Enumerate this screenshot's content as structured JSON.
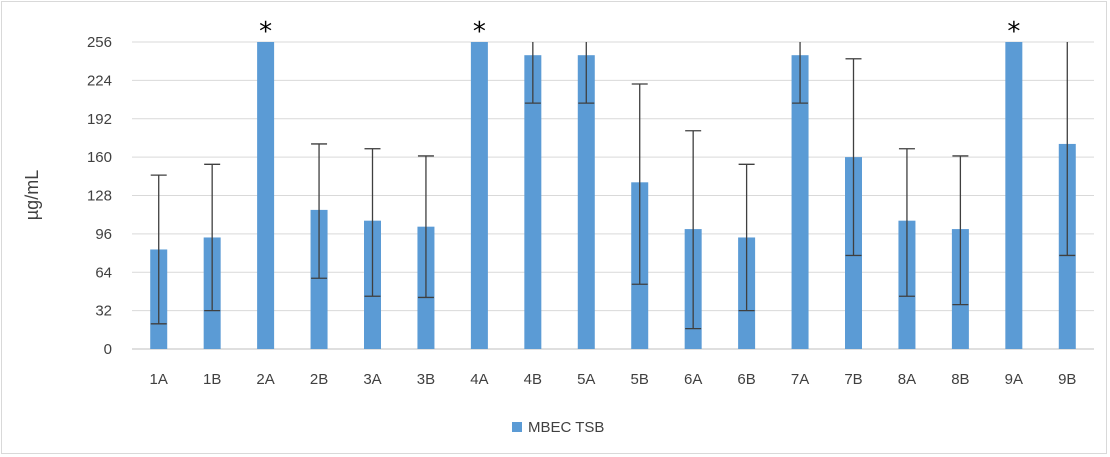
{
  "chart_data": {
    "type": "bar",
    "title": "",
    "xlabel": "",
    "ylabel": "µg/mL",
    "ylim": [
      0,
      256
    ],
    "yticks": [
      "0",
      "32",
      "64",
      "96",
      "128",
      "160",
      "192",
      "224",
      "256"
    ],
    "grid": "horizontal",
    "legend_position": "bottom",
    "categories": [
      "1A",
      "1B",
      "2A",
      "2B",
      "3A",
      "3B",
      "4A",
      "4B",
      "5A",
      "5B",
      "6A",
      "6B",
      "7A",
      "7B",
      "8A",
      "8B",
      "9A",
      "9B"
    ],
    "series": [
      {
        "name": "MBEC TSB",
        "color": "#5b9bd5",
        "values": [
          83,
          93,
          256,
          116,
          107,
          102,
          256,
          245,
          245,
          139,
          100,
          93,
          245,
          160,
          107,
          100,
          256,
          171
        ],
        "error_low": [
          21,
          32,
          256,
          59,
          44,
          43,
          256,
          205,
          205,
          54,
          17,
          32,
          205,
          78,
          44,
          37,
          256,
          78
        ],
        "error_high": [
          145,
          154,
          256,
          171,
          167,
          161,
          256,
          256,
          256,
          221,
          182,
          154,
          256,
          242,
          167,
          161,
          256,
          256
        ]
      }
    ],
    "annotations": [
      {
        "category": "2A",
        "text": "*"
      },
      {
        "category": "4A",
        "text": "*"
      },
      {
        "category": "9A",
        "text": "*"
      }
    ]
  }
}
